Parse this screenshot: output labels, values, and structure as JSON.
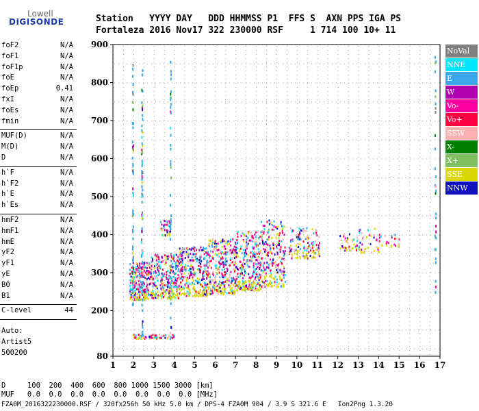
{
  "logo": {
    "line1": "Lowell",
    "line2": "DIGISONDE"
  },
  "header": {
    "row1": "Station   YYYY DAY   DDD HHMMSS P1  FFS S  AXN PPS IGA PS",
    "row2": "Fortaleza 2016 Nov17 322 230000 RSF     1 714 100 10+ 11"
  },
  "sidebar": {
    "groups": [
      [
        {
          "name": "foF2",
          "value": "N/A"
        },
        {
          "name": "foF1",
          "value": "N/A"
        },
        {
          "name": "foF1p",
          "value": "N/A"
        },
        {
          "name": "foE",
          "value": "N/A"
        },
        {
          "name": "foEp",
          "value": "0.41"
        },
        {
          "name": "fxI",
          "value": "N/A"
        },
        {
          "name": "foEs",
          "value": "N/A"
        },
        {
          "name": "fmin",
          "value": "N/A"
        }
      ],
      [
        {
          "name": "MUF(D)",
          "value": "N/A"
        },
        {
          "name": "M(D)",
          "value": "N/A"
        },
        {
          "name": "D",
          "value": "N/A"
        }
      ],
      [
        {
          "name": "h`F",
          "value": "N/A"
        },
        {
          "name": "h`F2",
          "value": "N/A"
        },
        {
          "name": "h`E",
          "value": "N/A"
        },
        {
          "name": "h`Es",
          "value": "N/A"
        }
      ],
      [
        {
          "name": "hmF2",
          "value": "N/A"
        },
        {
          "name": "hmF1",
          "value": "N/A"
        },
        {
          "name": "hmE",
          "value": "N/A"
        },
        {
          "name": "yF2",
          "value": "N/A"
        },
        {
          "name": "yF1",
          "value": "N/A"
        },
        {
          "name": "yE",
          "value": "N/A"
        },
        {
          "name": "B0",
          "value": "N/A"
        },
        {
          "name": "B1",
          "value": "N/A"
        }
      ],
      [
        {
          "name": "C-level",
          "value": "44"
        }
      ]
    ],
    "auto_label": "Auto:",
    "artist": "Artist5",
    "artist_version": "500200"
  },
  "legend": [
    {
      "label": "NoVal",
      "color": "#808080"
    },
    {
      "label": "NNE",
      "color": "#00e8ff"
    },
    {
      "label": "E",
      "color": "#3aa8e8"
    },
    {
      "label": "W",
      "color": "#b000b0"
    },
    {
      "label": "Vo-",
      "color": "#ff00a0"
    },
    {
      "label": "Vo+",
      "color": "#ff0040"
    },
    {
      "label": "SSW",
      "color": "#ffb0b0"
    },
    {
      "label": "X-",
      "color": "#008000"
    },
    {
      "label": "X+",
      "color": "#80c060"
    },
    {
      "label": "SSE",
      "color": "#d8d800"
    },
    {
      "label": "NNW",
      "color": "#1010c0"
    }
  ],
  "bottom": {
    "row_d": "D     100  200  400  600  800 1000 1500 3000 [km]",
    "row_muf": "MUF   0.0  0.0  0.0  0.0  0.0  0.0  0.0  0.0 [MHz]",
    "footer": "FZA0M_2016322230000.RSF / 320fx256h 50 kHz 5.0 km / DPS-4 FZA0M 904 / 3.9 S 321.6 E   Ion2Png 1.3.20"
  },
  "chart_data": {
    "type": "scatter",
    "xlim": [
      1,
      17
    ],
    "ylim": [
      80,
      900
    ],
    "xticks": [
      1,
      2,
      3,
      4,
      5,
      6,
      7,
      8,
      9,
      10,
      11,
      12,
      13,
      14,
      15,
      16,
      17
    ],
    "yticks": [
      80,
      200,
      300,
      400,
      500,
      600,
      700,
      800,
      900
    ],
    "grid": true,
    "legend_position": "right",
    "clusters": [
      {
        "x": [
          1.8,
          2.8
        ],
        "y": [
          230,
          330
        ],
        "n": 260
      },
      {
        "x": [
          2.8,
          4.2
        ],
        "y": [
          235,
          350
        ],
        "n": 300
      },
      {
        "x": [
          4.2,
          5.6
        ],
        "y": [
          240,
          370
        ],
        "n": 320
      },
      {
        "x": [
          5.6,
          7.0
        ],
        "y": [
          245,
          390
        ],
        "n": 320
      },
      {
        "x": [
          7.0,
          8.2
        ],
        "y": [
          255,
          410
        ],
        "n": 280
      },
      {
        "x": [
          8.2,
          9.4
        ],
        "y": [
          265,
          440
        ],
        "n": 240
      },
      {
        "x": [
          9.6,
          11.1
        ],
        "y": [
          340,
          420
        ],
        "n": 130
      },
      {
        "x": [
          12.0,
          13.0
        ],
        "y": [
          360,
          405
        ],
        "n": 40
      },
      {
        "x": [
          13.0,
          14.0
        ],
        "y": [
          355,
          420
        ],
        "n": 40
      },
      {
        "x": [
          14.0,
          15.0
        ],
        "y": [
          370,
          405
        ],
        "n": 25
      },
      {
        "x": [
          3.3,
          3.8
        ],
        "y": [
          400,
          440
        ],
        "n": 40
      },
      {
        "x": [
          1.9,
          4.0
        ],
        "y": [
          128,
          140
        ],
        "n": 60
      }
    ],
    "streaks": [
      {
        "x": 1.95,
        "y": [
          200,
          860
        ],
        "n": 60
      },
      {
        "x": 2.4,
        "y": [
          130,
          900
        ],
        "n": 70
      },
      {
        "x": 3.8,
        "y": [
          120,
          860
        ],
        "n": 45
      },
      {
        "x": 16.75,
        "y": [
          230,
          880
        ],
        "n": 30
      }
    ]
  }
}
